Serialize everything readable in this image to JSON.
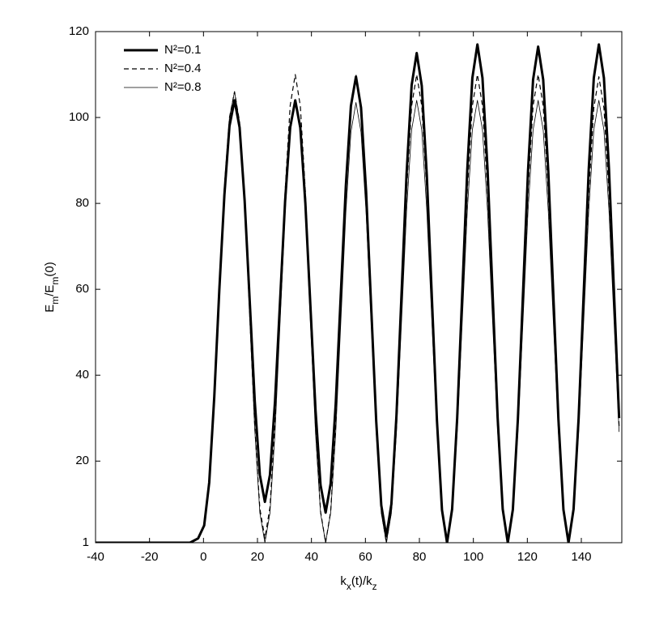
{
  "chart_data": {
    "type": "line",
    "xlabel": [
      "k",
      "x",
      "(t)/k",
      "z"
    ],
    "ylabel": [
      "E",
      "m",
      "/E",
      "m",
      "(0)"
    ],
    "xlim": [
      -40,
      155
    ],
    "ylim": [
      1,
      120
    ],
    "xticks": [
      -40,
      -20,
      0,
      20,
      40,
      60,
      80,
      100,
      120,
      140
    ],
    "yticks": [
      1,
      20,
      40,
      60,
      80,
      100,
      120
    ],
    "legend": "upper left",
    "x": [
      -40,
      -20,
      -10,
      -5,
      -2,
      0.25,
      2.125,
      4,
      5.875,
      7.75,
      9.625,
      11.5,
      13.375,
      15.25,
      17.125,
      19,
      20.875,
      22.75,
      24.625,
      26.5,
      28.375,
      30.25,
      32.125,
      34,
      35.875,
      37.75,
      39.625,
      41.5,
      43.375,
      45.25,
      47.125,
      49,
      50.875,
      52.75,
      54.625,
      56.5,
      58.375,
      60.25,
      62.125,
      64,
      65.875,
      67.75,
      69.625,
      71.5,
      73.375,
      75.25,
      77.125,
      79,
      80.875,
      82.75,
      84.625,
      86.5,
      88.375,
      90.25,
      92.125,
      94,
      95.875,
      97.75,
      99.625,
      101.5,
      103.375,
      105.25,
      107.125,
      109,
      110.875,
      112.75,
      114.625,
      116.5,
      118.375,
      120.25,
      122.125,
      124,
      125.875,
      127.75,
      129.625,
      131.5,
      133.375,
      135.25,
      137.125,
      139,
      140.875,
      142.75,
      144.625,
      146.5,
      148.375,
      150.25,
      152.125,
      154
    ],
    "series": [
      {
        "name": "N²=0.1",
        "color": "#000000",
        "width": 3,
        "dash": "none",
        "values": [
          1,
          1,
          1,
          1,
          2,
          5,
          15,
          35,
          60,
          82,
          98,
          104,
          97.7,
          80.6,
          57.3,
          33.9,
          16.8,
          10.5,
          16.8,
          33.9,
          57.3,
          80.6,
          97.7,
          104,
          97.6,
          80,
          56,
          32,
          14.4,
          8,
          14.8,
          33.4,
          58.8,
          84.1,
          102.7,
          109.5,
          102.3,
          82.8,
          56,
          29.3,
          9.7,
          2.5,
          10,
          30.6,
          58.8,
          86.9,
          107.5,
          115,
          107.4,
          86.5,
          58,
          29.5,
          8.6,
          1,
          8.8,
          30,
          59,
          88,
          109.2,
          117,
          109.2,
          88,
          59,
          30,
          8.8,
          1,
          8.7,
          29.9,
          58.8,
          87.6,
          108.8,
          116.5,
          108.8,
          87.6,
          58.8,
          29.9,
          8.7,
          1,
          8.8,
          30,
          59,
          88,
          109.2,
          117,
          109.2,
          88,
          59,
          30
        ]
      },
      {
        "name": "N²=0.4",
        "color": "#000000",
        "width": 1.2,
        "dash": "6 4",
        "values": [
          1,
          1,
          1,
          1,
          2,
          5,
          15,
          36,
          61,
          84,
          100,
          106,
          99,
          80,
          54,
          28,
          9,
          2,
          9.2,
          29,
          56,
          83,
          102.8,
          110,
          102.7,
          82.8,
          55.5,
          28.3,
          8.3,
          1,
          8.3,
          28.3,
          55.5,
          82.8,
          102.7,
          110,
          102.7,
          82.8,
          55.5,
          28.3,
          8.3,
          1,
          8.3,
          28.3,
          55.5,
          82.8,
          102.7,
          110,
          102.7,
          82.8,
          55.5,
          28.3,
          8.3,
          1,
          8.3,
          28.3,
          55.5,
          82.8,
          102.7,
          110,
          102.7,
          82.8,
          55.5,
          28.3,
          8.3,
          1,
          8.3,
          28.3,
          55.5,
          82.8,
          102.7,
          110,
          102.7,
          82.8,
          55.5,
          28.3,
          8.3,
          1,
          8.3,
          28.1,
          55.3,
          82.4,
          102.2,
          109.5,
          102.2,
          82.4,
          55.3,
          28.1
        ]
      },
      {
        "name": "N²=0.8",
        "color": "#000000",
        "width": 0.8,
        "dash": "none",
        "values": [
          1,
          1,
          1,
          1,
          2,
          5,
          15,
          36,
          61,
          84,
          100,
          106,
          98.9,
          79.8,
          53.5,
          27.3,
          8,
          1,
          7.9,
          26.6,
          52.3,
          77.9,
          96.6,
          103.5,
          96.6,
          77.9,
          52.3,
          26.6,
          7.9,
          1,
          7.9,
          26.6,
          52.3,
          77.9,
          96.6,
          103.5,
          96.6,
          77.9,
          52.3,
          26.6,
          7.9,
          1,
          7.9,
          26.8,
          52.5,
          78.3,
          97.1,
          104,
          97.1,
          78.3,
          52.5,
          26.8,
          7.9,
          1,
          7.9,
          26.8,
          52.5,
          78.3,
          97.1,
          104,
          97.1,
          78.3,
          52.5,
          26.8,
          7.9,
          1,
          7.9,
          26.8,
          52.5,
          78.3,
          97.1,
          104,
          97.1,
          78.3,
          52.5,
          26.8,
          7.9,
          1,
          7.9,
          26.8,
          52.5,
          78.3,
          97.1,
          104,
          97.1,
          78.3,
          52.5,
          26.8
        ]
      }
    ]
  }
}
